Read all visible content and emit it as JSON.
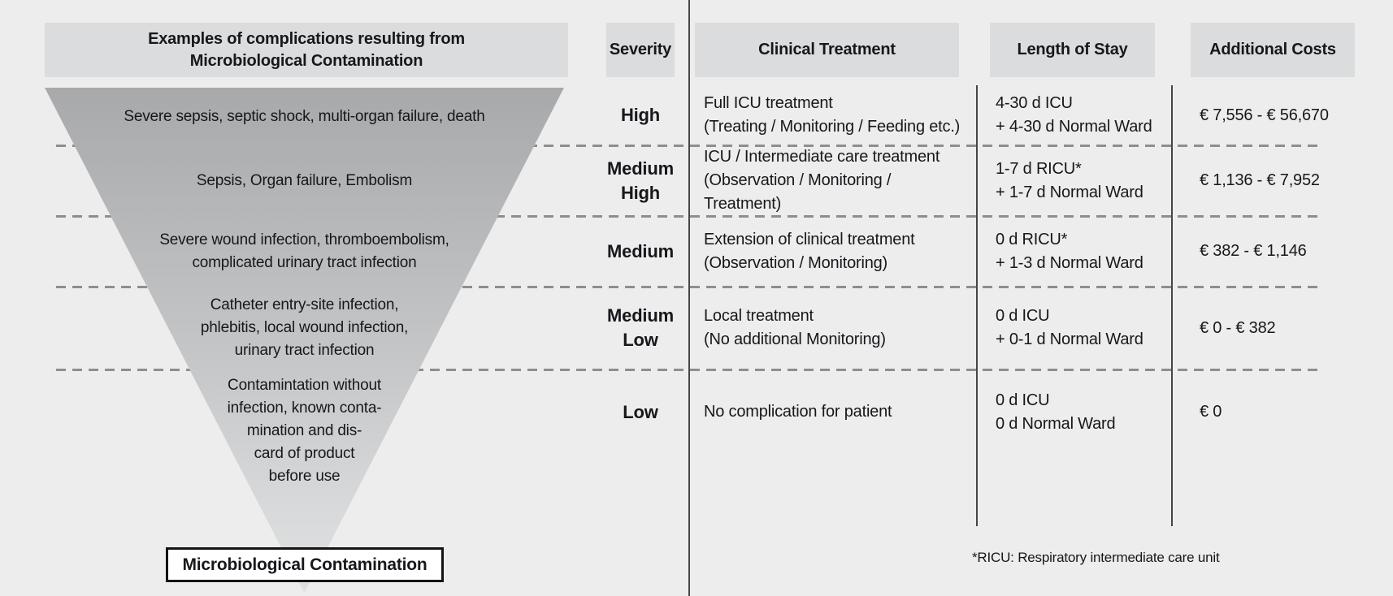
{
  "header": {
    "examples": "Examples of complications resulting from\nMicrobiological Contamination",
    "severity": "Severity",
    "treatment": "Clinical Treatment",
    "stay": "Length of Stay",
    "costs": "Additional Costs"
  },
  "rows": [
    {
      "examples": "Severe sepsis, septic shock, multi-organ failure, death",
      "severity": "High",
      "treatment": "Full ICU treatment\n(Treating / Monitoring / Feeding etc.)",
      "stay": "4-30 d ICU\n+ 4-30 d Normal Ward",
      "costs": "€ 7,556 - € 56,670"
    },
    {
      "examples": "Sepsis, Organ failure, Embolism",
      "severity": "Medium\nHigh",
      "treatment": "ICU / Intermediate care treatment\n(Observation / Monitoring / Treatment)",
      "stay": "1-7 d RICU*\n+ 1-7 d Normal Ward",
      "costs": "€ 1,136 - € 7,952"
    },
    {
      "examples": "Severe wound infection, thromboembolism,\ncomplicated urinary tract infection",
      "severity": "Medium",
      "treatment": "Extension of clinical treatment\n(Observation / Monitoring)",
      "stay": "0 d RICU*\n+ 1-3 d Normal Ward",
      "costs": "€ 382 - € 1,146"
    },
    {
      "examples": "Catheter entry-site infection,\nphlebitis, local wound infection,\nurinary tract infection",
      "severity": "Medium\nLow",
      "treatment": "Local treatment\n(No additional Monitoring)",
      "stay": "0 d ICU\n+ 0-1 d Normal Ward",
      "costs": "€ 0 - € 382"
    },
    {
      "examples": "Contamintation without\ninfection, known conta-\nmination and dis-\ncard of product\nbefore use",
      "severity": "Low",
      "treatment": "No complication for patient",
      "stay": "0 d ICU\n0 d Normal Ward",
      "costs": "€ 0"
    }
  ],
  "funnel": {
    "base_label": "Microbiological Contamination"
  },
  "footnote": "*RICU: Respiratory intermediate care unit",
  "colors": {
    "background": "#ededed",
    "header_box": "#dbdcdd",
    "funnel_top": "#a8a9ab",
    "funnel_bottom": "#dfe0e1",
    "divider_line": "#454545",
    "dashed_line": "#8e8e8e",
    "text": "#17171c",
    "base_box_bg": "#ffffff",
    "base_box_border": "#141414"
  }
}
